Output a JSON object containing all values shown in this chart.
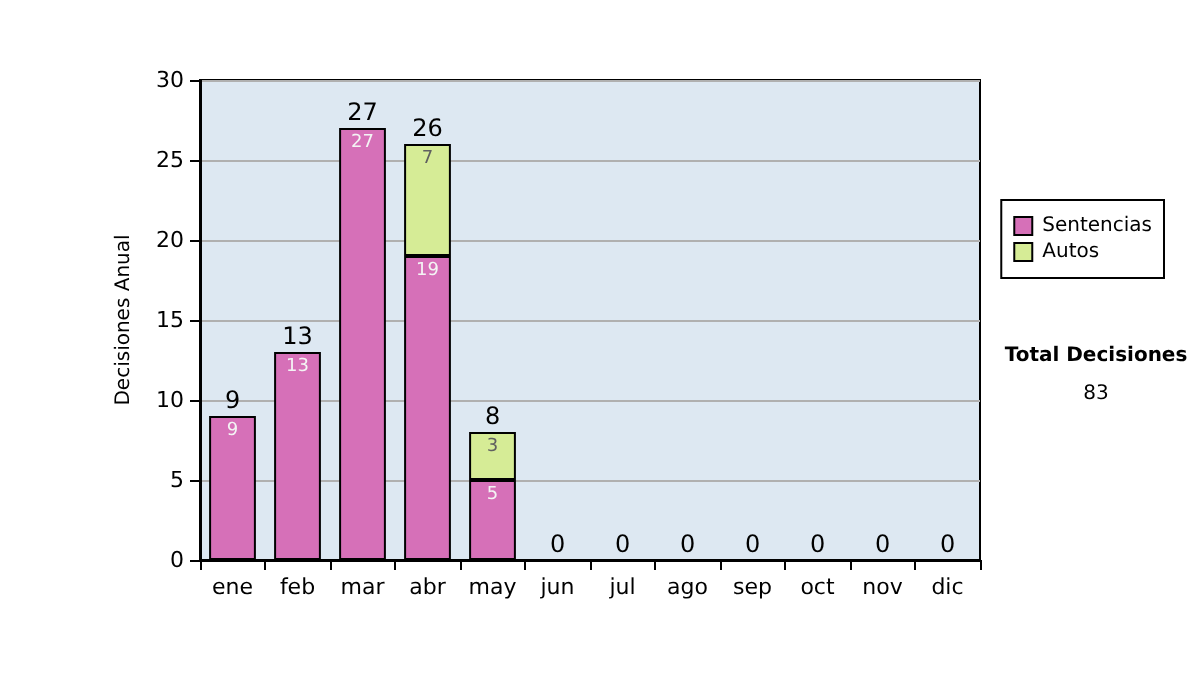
{
  "chart_data": {
    "type": "bar",
    "stacked": true,
    "ylabel": "Decisiones Anual",
    "categories": [
      "ene",
      "feb",
      "mar",
      "abr",
      "may",
      "jun",
      "jul",
      "ago",
      "sep",
      "oct",
      "nov",
      "dic"
    ],
    "series": [
      {
        "name": "Sentencias",
        "color": "#d670b8",
        "values": [
          9,
          13,
          27,
          19,
          5,
          0,
          0,
          0,
          0,
          0,
          0,
          0
        ],
        "value_labels": [
          "9",
          "13",
          "27",
          "19",
          "5",
          null,
          null,
          null,
          null,
          null,
          null,
          null
        ]
      },
      {
        "name": "Autos",
        "color": "#d6ec96",
        "values": [
          0,
          0,
          0,
          7,
          3,
          0,
          0,
          0,
          0,
          0,
          0,
          0
        ],
        "value_labels": [
          null,
          null,
          null,
          "7",
          "3",
          null,
          null,
          null,
          null,
          null,
          null,
          null
        ]
      }
    ],
    "totals": [
      "9",
      "13",
      "27",
      "26",
      "8",
      "0",
      "0",
      "0",
      "0",
      "0",
      "0",
      "0"
    ],
    "ylim": [
      0,
      30
    ],
    "yticks": [
      0,
      5,
      10,
      15,
      20,
      25,
      30
    ],
    "grid": "y",
    "legend": "right",
    "annotations": [
      "Total Decisiones",
      "83"
    ]
  }
}
